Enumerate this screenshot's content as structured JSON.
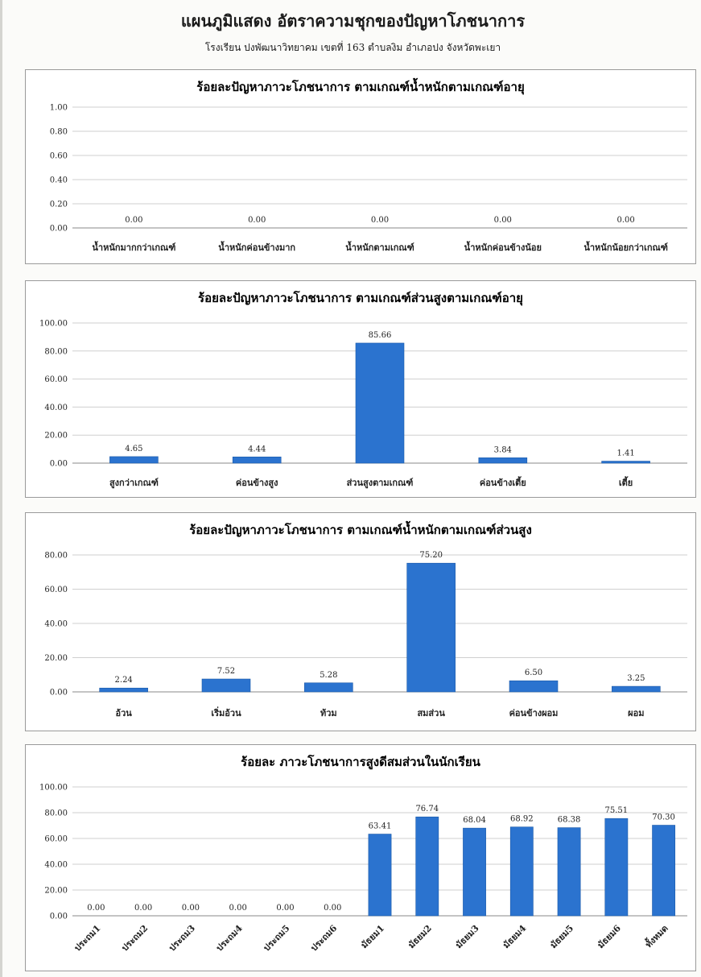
{
  "page": {
    "title": "แผนภูมิแสดง อัตราความชุกของปัญหาโภชนาการ",
    "subtitle": "โรงเรียน ปงพัฒนาวิทยาคม เขตที่ 163 ตำบลงิม อำเภอปง จังหวัดพะเยา"
  },
  "chart_data": [
    {
      "type": "bar",
      "title": "ร้อยละปัญหาภาวะโภชนาการ ตามเกณฑ์น้ำหนักตามเกณฑ์อายุ",
      "categories": [
        "น้ำหนักมากกว่าเกณฑ์",
        "น้ำหนักค่อนข้างมาก",
        "น้ำหนักตามเกณฑ์",
        "น้ำหนักค่อนข้างน้อย",
        "น้ำหนักน้อยกว่าเกณฑ์"
      ],
      "values": [
        0.0,
        0.0,
        0.0,
        0.0,
        0.0
      ],
      "ylim": [
        0,
        1
      ],
      "yticks": [
        "0.00",
        "0.20",
        "0.40",
        "0.60",
        "0.80",
        "1.00"
      ],
      "data_labels": [
        "0.00",
        "0.00",
        "0.00",
        "0.00",
        "0.00"
      ],
      "grid": true,
      "legend": "none",
      "color": "#2b73cf"
    },
    {
      "type": "bar",
      "title": "ร้อยละปัญหาภาวะโภชนาการ ตามเกณฑ์ส่วนสูงตามเกณฑ์อายุ",
      "categories": [
        "สูงกว่าเกณฑ์",
        "ค่อนข้างสูง",
        "ส่วนสูงตามเกณฑ์",
        "ค่อนข้างเตี้ย",
        "เตี้ย"
      ],
      "values": [
        4.65,
        4.44,
        85.66,
        3.84,
        1.41
      ],
      "ylim": [
        0,
        100
      ],
      "yticks": [
        "0.00",
        "20.00",
        "40.00",
        "60.00",
        "80.00",
        "100.00"
      ],
      "data_labels": [
        "4.65",
        "4.44",
        "85.66",
        "3.84",
        "1.41"
      ],
      "grid": true,
      "legend": "none",
      "color": "#2b73cf"
    },
    {
      "type": "bar",
      "title": "ร้อยละปัญหาภาวะโภชนาการ ตามเกณฑ์น้ำหนักตามเกณฑ์ส่วนสูง",
      "categories": [
        "อ้วน",
        "เริ่มอ้วน",
        "ท้วม",
        "สมส่วน",
        "ค่อนข้างผอม",
        "ผอม"
      ],
      "values": [
        2.24,
        7.52,
        5.28,
        75.2,
        6.5,
        3.25
      ],
      "ylim": [
        0,
        80
      ],
      "yticks": [
        "0.00",
        "20.00",
        "40.00",
        "60.00",
        "80.00"
      ],
      "data_labels": [
        "2.24",
        "7.52",
        "5.28",
        "75.20",
        "6.50",
        "3.25"
      ],
      "grid": true,
      "legend": "none",
      "color": "#2b73cf"
    },
    {
      "type": "bar",
      "title": "ร้อยละ ภาวะโภชนาการสูงดีสมส่วนในนักเรียน",
      "categories": [
        "ประถม1",
        "ประถม2",
        "ประถม3",
        "ประถม4",
        "ประถม5",
        "ประถม6",
        "มัธยม1",
        "มัธยม2",
        "มัธยม3",
        "มัธยม4",
        "มัธยม5",
        "มัธยม6",
        "ทั้งหมด"
      ],
      "values": [
        0.0,
        0.0,
        0.0,
        0.0,
        0.0,
        0.0,
        63.41,
        76.74,
        68.04,
        68.92,
        68.38,
        75.51,
        70.3
      ],
      "ylim": [
        0,
        100
      ],
      "yticks": [
        "0.00",
        "20.00",
        "40.00",
        "60.00",
        "80.00",
        "100.00"
      ],
      "data_labels": [
        "0.00",
        "0.00",
        "0.00",
        "0.00",
        "0.00",
        "0.00",
        "63.41",
        "76.74",
        "68.04",
        "68.92",
        "68.38",
        "75.51",
        "70.30"
      ],
      "grid": true,
      "legend": "none",
      "rotated_category_labels": true,
      "color": "#2b73cf"
    }
  ]
}
